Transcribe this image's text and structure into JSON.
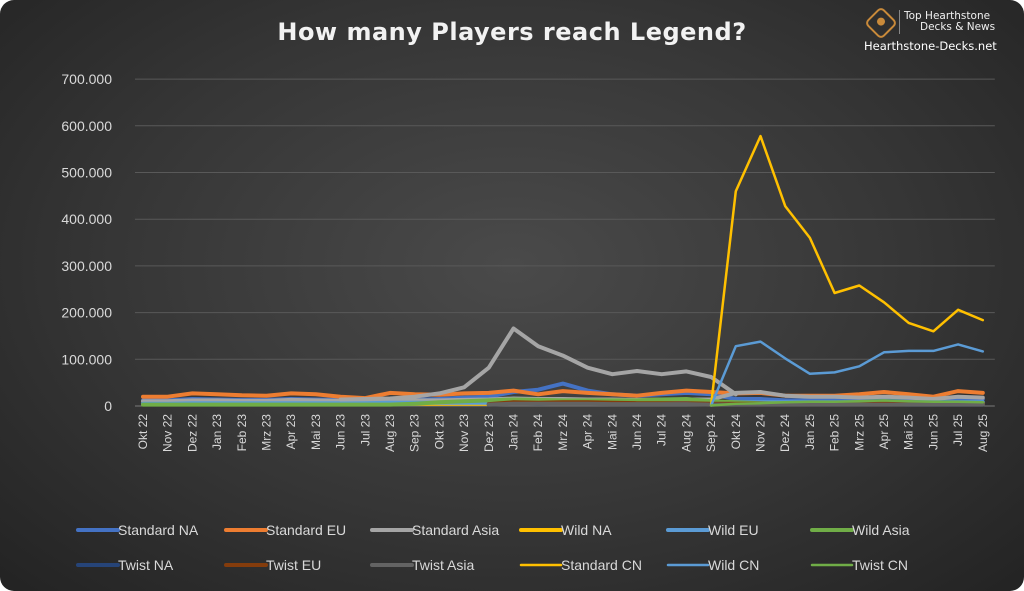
{
  "header": {
    "title": "How many Players reach Legend?",
    "brand_line1": "Top Hearthstone",
    "brand_line2": "Decks & News",
    "brand_site": "Hearthstone-Decks.net",
    "brand_icon": "hearthstone-logo-icon"
  },
  "chart_data": {
    "type": "line",
    "title": "How many Players reach Legend?",
    "xlabel": "",
    "ylabel": "",
    "ylim": [
      0,
      700000
    ],
    "y_ticks": [
      0,
      100000,
      200000,
      300000,
      400000,
      500000,
      600000,
      700000
    ],
    "y_tick_labels": [
      "0",
      "100.000",
      "200.000",
      "300.000",
      "400.000",
      "500.000",
      "600.000",
      "700.000"
    ],
    "grid": "horizontal",
    "legend_position": "bottom",
    "categories": [
      "Okt 22",
      "Nov 22",
      "Dez 22",
      "Jan 23",
      "Feb 23",
      "Mrz 23",
      "Apr 23",
      "Mai 23",
      "Jun 23",
      "Jul 23",
      "Aug 23",
      "Sep 23",
      "Okt 23",
      "Nov 23",
      "Dez 23",
      "Jan 24",
      "Feb 24",
      "Mrz 24",
      "Apr 24",
      "Mai 24",
      "Jun 24",
      "Jul 24",
      "Aug 24",
      "Sep 24",
      "Okt 24",
      "Nov 24",
      "Dez 24",
      "Jan 25",
      "Feb 25",
      "Mrz 25",
      "Apr 25",
      "Mai 25",
      "Jun 25",
      "Jul 25",
      "Aug 25"
    ],
    "series": [
      {
        "name": "Standard NA",
        "color": "#4472c4",
        "style": "thick",
        "values": [
          12000,
          12000,
          15000,
          14000,
          13000,
          13000,
          15000,
          14000,
          13000,
          12000,
          14000,
          13000,
          15000,
          18000,
          20000,
          30000,
          35000,
          48000,
          33000,
          25000,
          22000,
          25000,
          28000,
          25000,
          15000,
          15000,
          12000,
          12000,
          12000,
          12000,
          15000,
          12000,
          12000,
          15000,
          15000
        ]
      },
      {
        "name": "Standard EU",
        "color": "#ed7d31",
        "style": "thick",
        "values": [
          20000,
          20000,
          27000,
          25000,
          23000,
          22000,
          27000,
          25000,
          20000,
          17000,
          28000,
          25000,
          24000,
          27000,
          28000,
          33000,
          25000,
          32000,
          28000,
          25000,
          22000,
          28000,
          33000,
          30000,
          27000,
          28000,
          22000,
          22000,
          22000,
          25000,
          30000,
          25000,
          20000,
          32000,
          28000
        ]
      },
      {
        "name": "Standard Asia",
        "color": "#a5a5a5",
        "style": "thick",
        "values": [
          10000,
          10000,
          12000,
          12000,
          11000,
          11000,
          13000,
          12000,
          11000,
          12000,
          12000,
          12000,
          12000,
          13000,
          14000,
          16000,
          15000,
          15000,
          14000,
          14000,
          13000,
          14000,
          14000,
          14000,
          28000,
          30000,
          22000,
          20000,
          20000,
          18000,
          20000,
          18000,
          15000,
          20000,
          18000
        ]
      },
      {
        "name": "Wild NA",
        "color": "#ffc000",
        "style": "thick",
        "values": [
          4000,
          4000,
          4000,
          4000,
          4000,
          4000,
          4000,
          4000,
          4000,
          4000,
          5000,
          5000,
          5000,
          5000,
          5000,
          6000,
          6000,
          6000,
          6000,
          6000,
          6000,
          6000,
          6000,
          6000,
          6000,
          6000,
          6000,
          6000,
          6000,
          6000,
          6000,
          6000,
          6000,
          6000,
          6000
        ]
      },
      {
        "name": "Wild EU",
        "color": "#5b9bd5",
        "style": "thick",
        "values": [
          5000,
          5000,
          6000,
          6000,
          6000,
          6000,
          6000,
          6000,
          6000,
          6000,
          7000,
          7000,
          7000,
          7000,
          7000,
          8000,
          8000,
          8000,
          8000,
          8000,
          8000,
          8000,
          8000,
          8000,
          8000,
          8000,
          8000,
          8000,
          8000,
          8000,
          8000,
          8000,
          8000,
          8000,
          8000
        ]
      },
      {
        "name": "Wild Asia",
        "color": "#70ad47",
        "style": "thick",
        "values": [
          3000,
          3000,
          3000,
          3000,
          3000,
          3000,
          3000,
          3000,
          3000,
          3000,
          3000,
          5000,
          8000,
          10000,
          12000,
          14000,
          13000,
          12000,
          12000,
          12000,
          12000,
          14000,
          15000,
          10000,
          8000,
          6000,
          6000,
          6000,
          6000,
          6000,
          6000,
          6000,
          6000,
          6000,
          6000
        ]
      },
      {
        "name": "Twist NA",
        "color": "#264478",
        "style": "thick",
        "values": [
          null,
          null,
          null,
          null,
          null,
          null,
          null,
          null,
          null,
          null,
          null,
          null,
          null,
          null,
          3000,
          6000,
          5000,
          6000,
          6000,
          5000,
          5000,
          5000,
          5000,
          4000,
          4000,
          4000,
          4000,
          4000,
          4000,
          4000,
          4000,
          3000,
          3000,
          3000,
          3000
        ]
      },
      {
        "name": "Twist EU",
        "color": "#843c0c",
        "style": "thick",
        "values": [
          null,
          null,
          null,
          null,
          null,
          null,
          null,
          null,
          null,
          null,
          null,
          null,
          null,
          null,
          4000,
          8000,
          7000,
          8000,
          8000,
          7000,
          6000,
          6000,
          6000,
          5000,
          5000,
          5000,
          5000,
          5000,
          5000,
          5000,
          5000,
          4000,
          4000,
          4000,
          4000
        ]
      },
      {
        "name": "Twist Asia",
        "color": "#636363",
        "style": "thick",
        "values": [
          null,
          null,
          null,
          null,
          null,
          null,
          null,
          null,
          null,
          null,
          null,
          null,
          null,
          null,
          3000,
          5000,
          5000,
          5000,
          5000,
          4000,
          4000,
          4000,
          4000,
          3000,
          3000,
          3000,
          3000,
          3000,
          3000,
          3000,
          3000,
          3000,
          3000,
          3000,
          3000
        ]
      },
      {
        "name": "Standard CN",
        "color": "#ffc000",
        "style": "thin",
        "values": [
          null,
          null,
          null,
          null,
          null,
          null,
          null,
          null,
          null,
          null,
          null,
          null,
          null,
          null,
          null,
          null,
          null,
          null,
          null,
          null,
          null,
          null,
          null,
          2000,
          460000,
          578000,
          428000,
          360000,
          242000,
          258000,
          222000,
          178000,
          160000,
          206000,
          184000
        ]
      },
      {
        "name": "Wild CN",
        "color": "#5b9bd5",
        "style": "thin",
        "values": [
          null,
          null,
          null,
          null,
          null,
          null,
          null,
          null,
          null,
          null,
          null,
          null,
          null,
          null,
          null,
          null,
          null,
          null,
          null,
          null,
          null,
          null,
          null,
          1000,
          128000,
          138000,
          102000,
          69000,
          72000,
          85000,
          115000,
          118000,
          118000,
          132000,
          117000
        ]
      },
      {
        "name": "Twist CN",
        "color": "#70ad47",
        "style": "thin",
        "values": [
          null,
          null,
          null,
          null,
          null,
          null,
          null,
          null,
          null,
          null,
          null,
          null,
          null,
          null,
          null,
          null,
          null,
          null,
          null,
          null,
          null,
          null,
          null,
          1000,
          5000,
          6000,
          8000,
          9000,
          9000,
          10000,
          12000,
          10000,
          9000,
          9000,
          8000
        ]
      },
      {
        "name": "",
        "color": "#a5a5a5",
        "style": "thick",
        "legend": false,
        "values": [
          null,
          null,
          null,
          null,
          null,
          null,
          null,
          null,
          14000,
          15000,
          16000,
          20000,
          27000,
          40000,
          82000,
          166000,
          128000,
          108000,
          82000,
          68000,
          75000,
          68000,
          74000,
          62000,
          25000,
          null,
          null,
          null,
          null,
          null,
          null,
          null,
          null,
          null,
          null
        ]
      }
    ]
  }
}
